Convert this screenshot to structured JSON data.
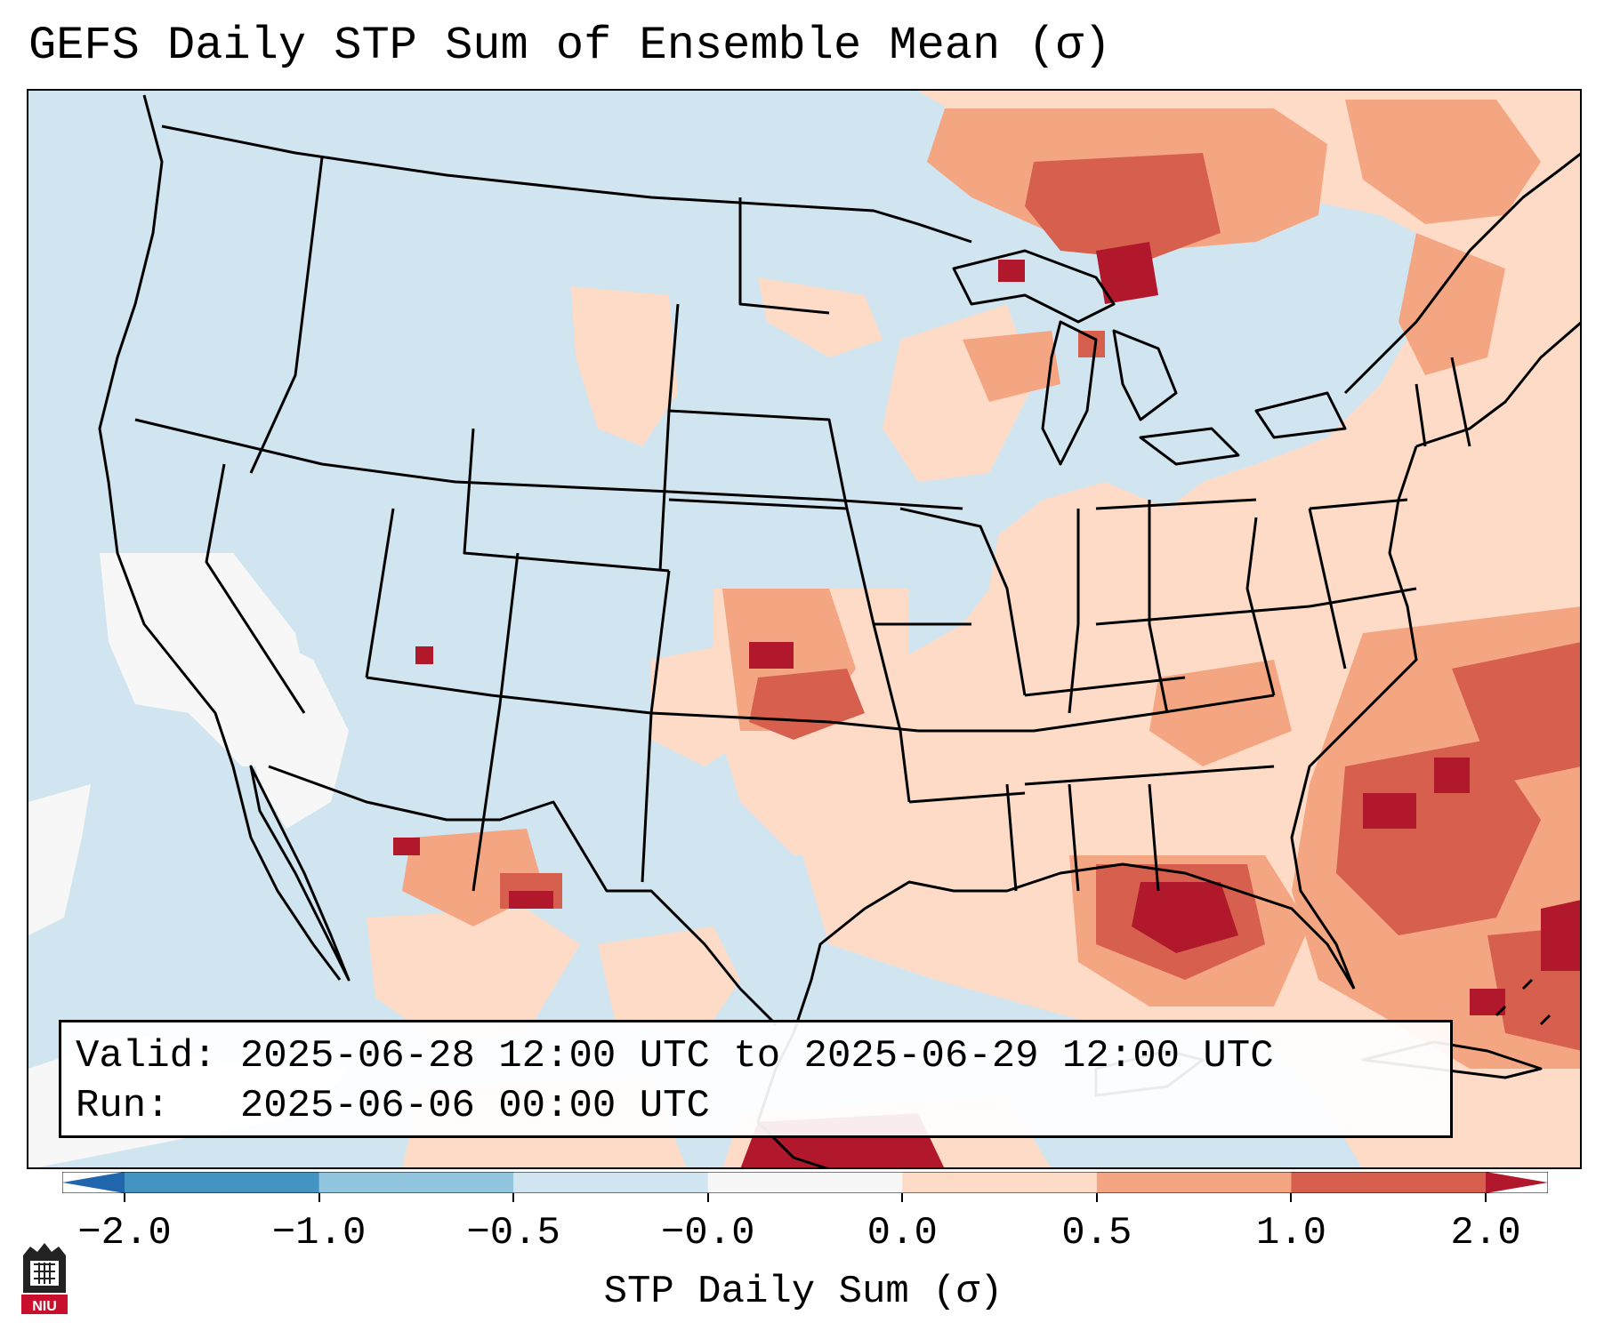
{
  "title": "GEFS Daily STP Sum of Ensemble Mean (σ)",
  "info": {
    "valid_line": "Valid: 2025-06-28 12:00 UTC to 2025-06-29 12:00 UTC",
    "run_line": "Run:   2025-06-06 00:00 UTC"
  },
  "colorbar": {
    "title": "STP Daily Sum (σ)",
    "tick_labels": [
      "−2.0",
      "−1.0",
      "−0.5",
      "−0.0",
      "0.0",
      "0.5",
      "1.0",
      "2.0"
    ],
    "colors": [
      "#2166ac",
      "#4393c3",
      "#92c5de",
      "#d1e5f0",
      "#f7f7f7",
      "#fddbc7",
      "#f4a582",
      "#d6604d",
      "#b2182b"
    ]
  },
  "map": {
    "background_color": "#d1e5f0",
    "neutral_color": "#f7f7f7",
    "low_color": "#fddbc7",
    "mid_color": "#f4a582",
    "high_color": "#d6604d",
    "max_color": "#b2182b"
  },
  "logo": {
    "text": "NIU",
    "color": "#c8102e"
  }
}
